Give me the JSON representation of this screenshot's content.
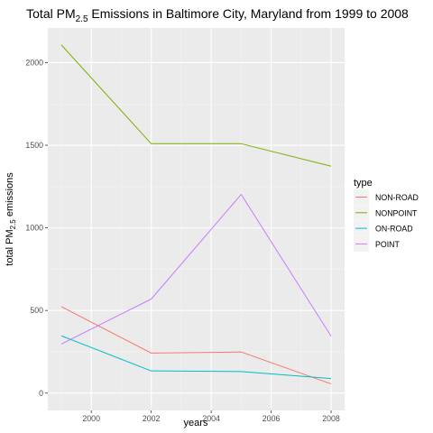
{
  "chart_data": {
    "type": "line",
    "title": {
      "prefix": "Total PM",
      "subscript": "2.5",
      "suffix": " Emissions in Baltimore City, Maryland from 1999 to 2008"
    },
    "xlabel": "years",
    "ylabel": {
      "prefix": "total PM",
      "subscript": "2.5",
      "suffix": " emissions"
    },
    "x": [
      1999,
      2002,
      2005,
      2008
    ],
    "xlim": [
      1998.55,
      2008.45
    ],
    "ylim": [
      -105,
      2210
    ],
    "x_ticks": [
      2000,
      2002,
      2004,
      2006,
      2008
    ],
    "x_tick_labels": [
      "2000",
      "2002",
      "2004",
      "2006",
      "2008"
    ],
    "y_ticks": [
      0,
      500,
      1000,
      1500,
      2000
    ],
    "y_tick_labels": [
      "0",
      "500",
      "1000",
      "1500",
      "2000"
    ],
    "grid": true,
    "legend": {
      "title": "type",
      "placement": "right"
    },
    "series": [
      {
        "name": "NON-ROAD",
        "color": "#F8766D",
        "values": [
          522.94,
          242.39,
          248.93,
          55.82
        ]
      },
      {
        "name": "NONPOINT",
        "color": "#7CAE00",
        "values": [
          2107.63,
          1509.5,
          1509.5,
          1373.21
        ]
      },
      {
        "name": "ON-ROAD",
        "color": "#00BFC4",
        "values": [
          346.82,
          134.31,
          130.43,
          88.28
        ]
      },
      {
        "name": "POINT",
        "color": "#C77CFF",
        "values": [
          296.8,
          569.26,
          1202.49,
          344.98
        ]
      }
    ]
  }
}
